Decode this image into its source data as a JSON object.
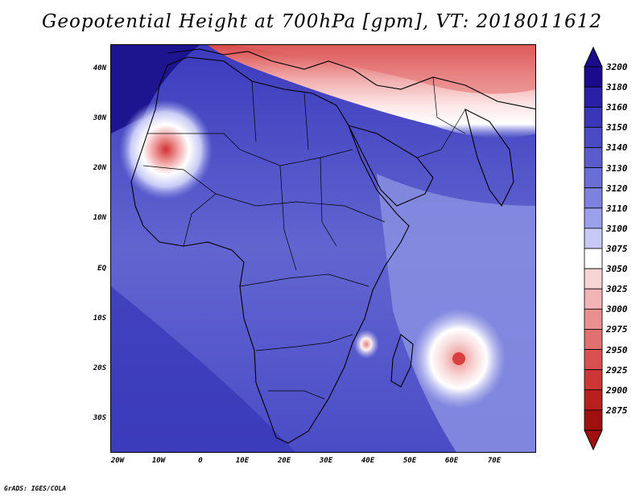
{
  "title": "Geopotential Height at 700hPa [gpm], VT: 2018011612",
  "lat_labels": [
    "40N",
    "30N",
    "20N",
    "10N",
    "EQ",
    "10S",
    "20S",
    "30S"
  ],
  "lon_labels": [
    "20W",
    "10W",
    "0",
    "10E",
    "20E",
    "30E",
    "40E",
    "50E",
    "60E",
    "70E"
  ],
  "colorbar": {
    "levels": [
      "3200",
      "3180",
      "3160",
      "3150",
      "3140",
      "3130",
      "3120",
      "3110",
      "3100",
      "3075",
      "3050",
      "3025",
      "3000",
      "2975",
      "2950",
      "2925",
      "2900",
      "2875"
    ],
    "colors": [
      "#1a0a8c",
      "#2a1fa8",
      "#3a36b8",
      "#4a4ac4",
      "#5a5cce",
      "#6a6ed8",
      "#7d82e0",
      "#9aa0ea",
      "#c6caf5",
      "#ffffff",
      "#f8d4d4",
      "#f2b4b4",
      "#ea9090",
      "#e27070",
      "#d85050",
      "#cc3636",
      "#b82020",
      "#a01010"
    ]
  },
  "credit": "GrADS: IGES/COLA"
}
